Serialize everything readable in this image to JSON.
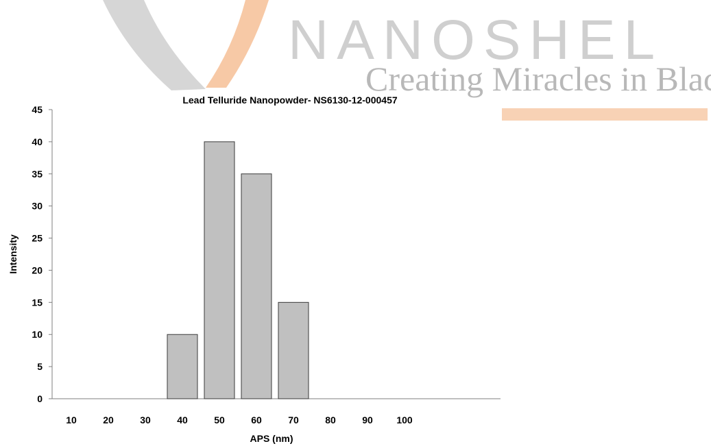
{
  "watermark": {
    "brand": "NANOSHEL",
    "tagline": "Creating Miracles in Black",
    "brand_color": "#c8c8c8",
    "tagline_color": "#b4b4b4",
    "accent_color": "#f7c9a6"
  },
  "chart_data": {
    "type": "bar",
    "title": "Lead Telluride Nanopowder- NS6130-12-000457",
    "xlabel": "APS (nm)",
    "ylabel": "Intensity",
    "categories": [
      "10",
      "20",
      "30",
      "40",
      "50",
      "60",
      "70",
      "80",
      "90",
      "100"
    ],
    "values": [
      0,
      0,
      0,
      10,
      40,
      35,
      15,
      0,
      0,
      0
    ],
    "ylim": [
      0,
      45
    ],
    "yticks": [
      0,
      5,
      10,
      15,
      20,
      25,
      30,
      35,
      40,
      45
    ],
    "grid": false,
    "legend": "none",
    "bar_color": "#c0c0c0",
    "bar_edge_color": "#3a3a3a",
    "axis_color": "#7f7f7f"
  }
}
